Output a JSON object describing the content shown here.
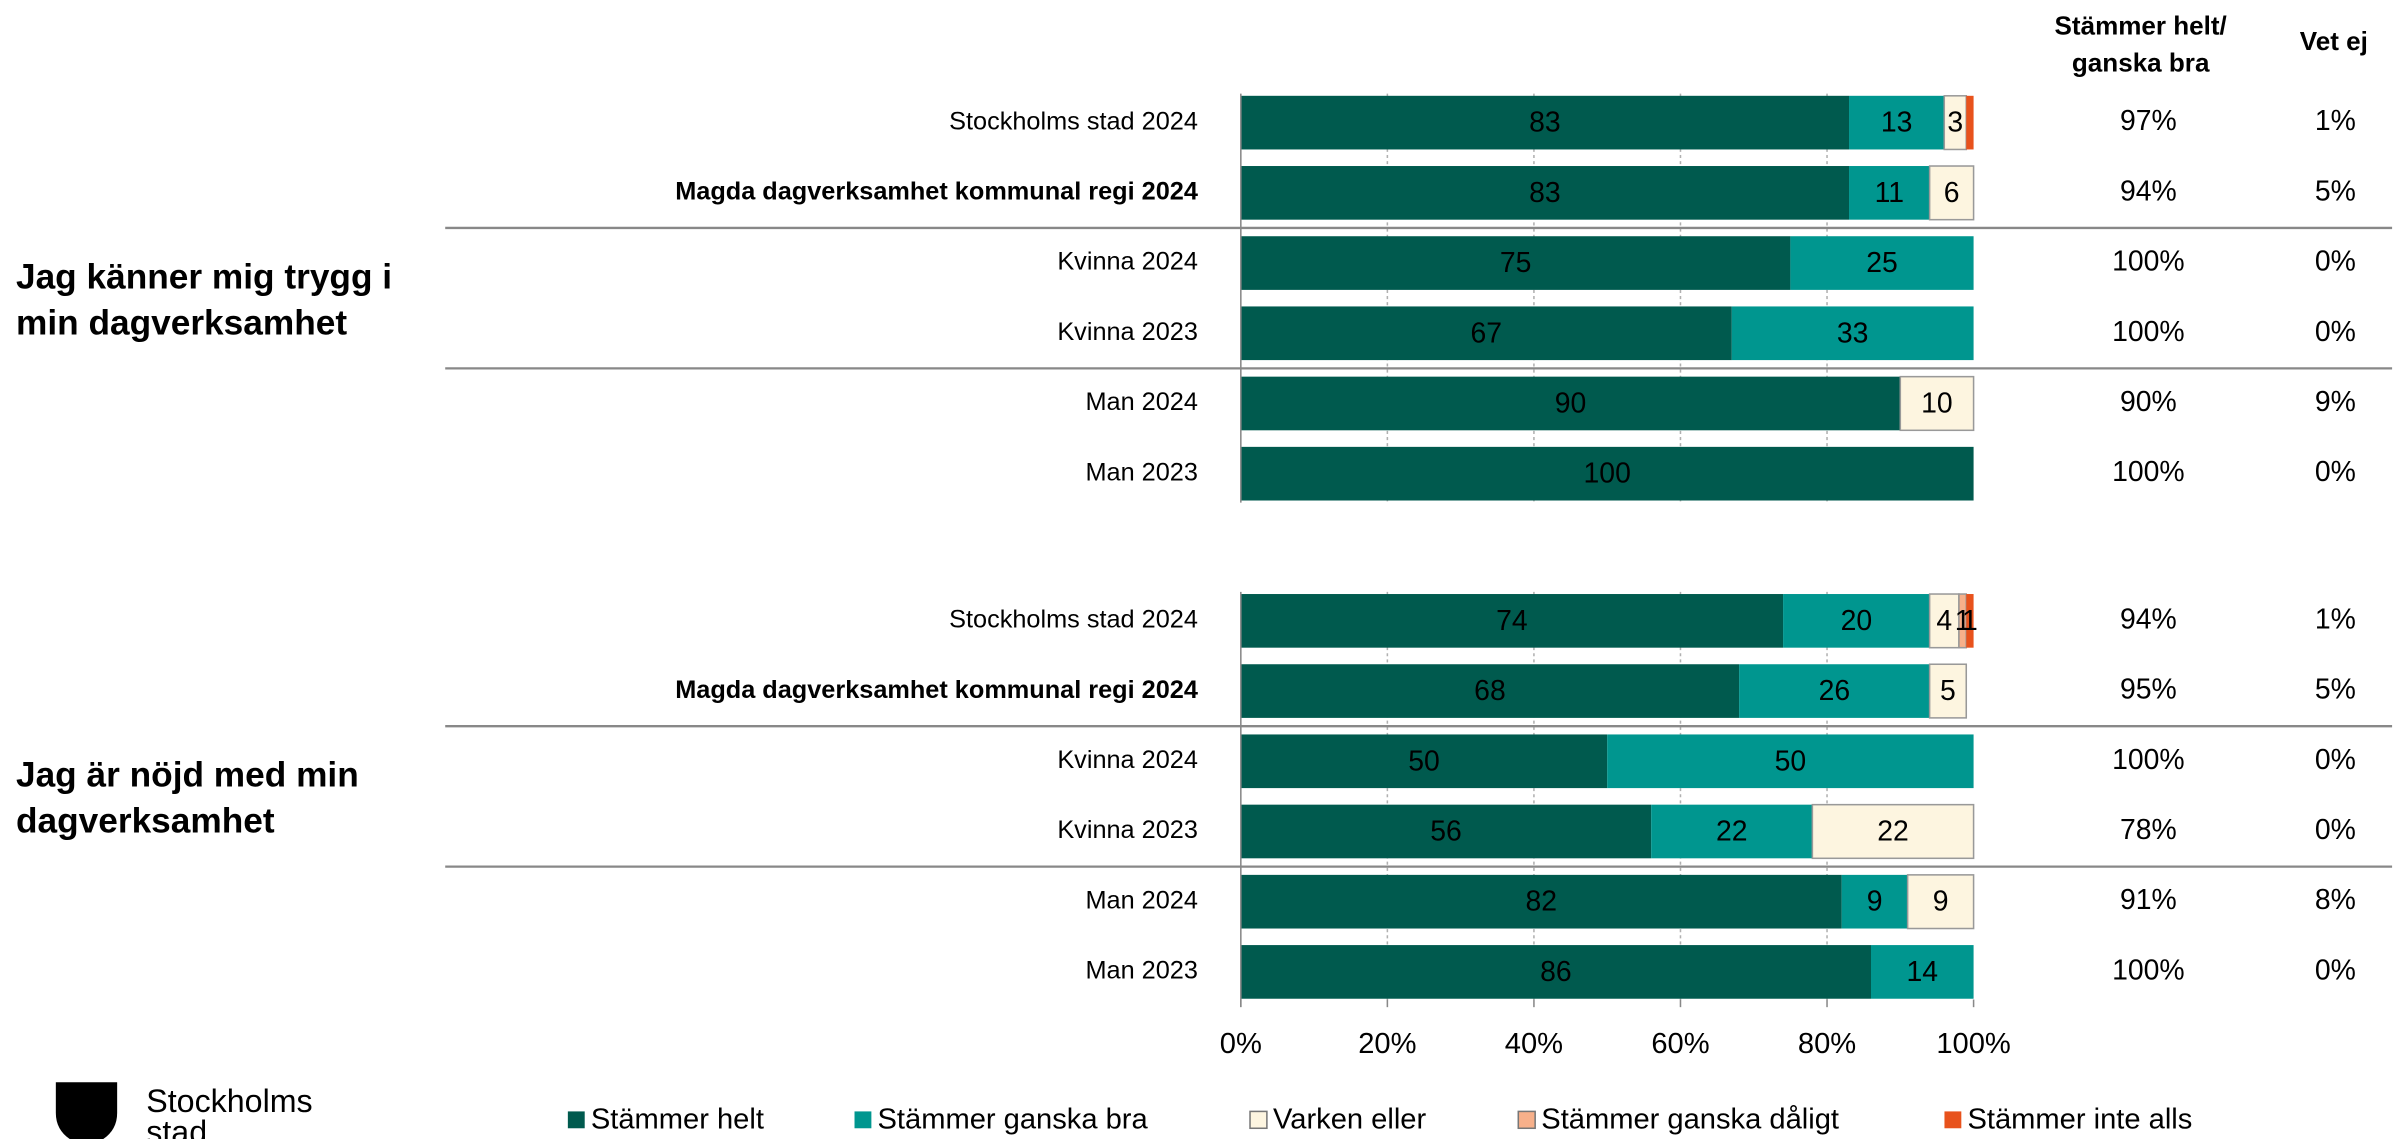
{
  "chart_data": [
    {
      "type": "bar",
      "orientation": "horizontal",
      "stacked": true,
      "title": [
        "Jag känner mig trygg i",
        "min dagverksamhet"
      ],
      "categories": [
        "Stockholms stad 2024",
        "Magda dagverksamhet kommunal regi 2024",
        "Kvinna 2024",
        "Kvinna 2023",
        "Man 2024",
        "Man 2023"
      ],
      "series": [
        {
          "name": "Stämmer helt",
          "color": "#005a4e",
          "values": [
            83,
            83,
            75,
            67,
            90,
            100
          ]
        },
        {
          "name": "Stämmer ganska bra",
          "color": "#00968f",
          "values": [
            13,
            11,
            25,
            33,
            null,
            null
          ]
        },
        {
          "name": "Varken eller",
          "color": "#fdf5e0",
          "values": [
            3,
            6,
            null,
            null,
            10,
            null
          ]
        },
        {
          "name": "Stämmer ganska dåligt",
          "color": "#f7b08a",
          "values": [
            null,
            null,
            null,
            null,
            null,
            null
          ]
        },
        {
          "name": "Stämmer inte alls",
          "color": "#e8521c",
          "values": [
            1,
            null,
            null,
            null,
            null,
            null
          ],
          "value_labels": [
            null,
            null,
            null,
            null,
            null,
            null
          ]
        }
      ],
      "summary": [
        "97%",
        "94%",
        "100%",
        "100%",
        "90%",
        "100%"
      ],
      "vet_ej": [
        "1%",
        "5%",
        "0%",
        "0%",
        "9%",
        "0%"
      ]
    },
    {
      "type": "bar",
      "orientation": "horizontal",
      "stacked": true,
      "title": [
        "Jag är nöjd med min",
        "dagverksamhet"
      ],
      "categories": [
        "Stockholms stad 2024",
        "Magda dagverksamhet kommunal regi 2024",
        "Kvinna 2024",
        "Kvinna 2023",
        "Man 2024",
        "Man 2023"
      ],
      "series": [
        {
          "color": "#005a4e",
          "values": [
            74,
            68,
            50,
            56,
            82,
            86
          ]
        },
        {
          "color": "#00968f",
          "values": [
            20,
            26,
            50,
            22,
            9,
            14
          ]
        },
        {
          "color": "#fdf5e0",
          "values": [
            4,
            5,
            null,
            22,
            9,
            null
          ]
        },
        {
          "color": "#f7b08a",
          "values": [
            1,
            null,
            null,
            null,
            null,
            null
          ]
        },
        {
          "color": "#e8521c",
          "values": [
            1,
            null,
            null,
            null,
            null,
            null
          ]
        }
      ],
      "summary": [
        "94%",
        "95%",
        "100%",
        "78%",
        "91%",
        "100%"
      ],
      "vet_ej": [
        "1%",
        "5%",
        "0%",
        "0%",
        "8%",
        "0%"
      ],
      "xlim": [
        0,
        100
      ],
      "xticks": [
        {
          "value": 0,
          "label": "0%"
        },
        {
          "value": 20,
          "label": "20%"
        },
        {
          "value": 40,
          "label": "40%"
        },
        {
          "value": 60,
          "label": "60%"
        },
        {
          "value": 80,
          "label": "80%"
        },
        {
          "value": 100,
          "label": "100%"
        }
      ],
      "grid": true
    }
  ],
  "columns": {
    "summary_header": [
      "Stämmer helt/",
      "ganska bra"
    ],
    "vet_header": "Vet ej"
  },
  "logo": [
    "Stockholms",
    "stad"
  ]
}
